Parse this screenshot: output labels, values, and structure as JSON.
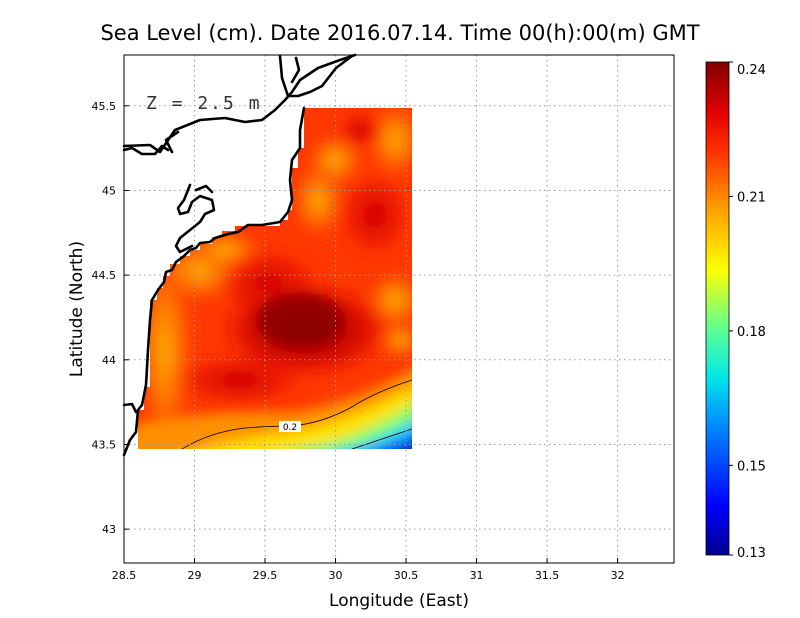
{
  "title": "Sea Level (cm). Date 2016.07.14. Time 00(h):00(m) GMT",
  "annotation": "Z = 2.5 m",
  "chart_data": {
    "type": "heatmap",
    "variable": "Sea Level (cm)",
    "xlabel": "Longitude (East)",
    "ylabel": "Latitude (North)",
    "xlim": [
      28.5,
      32.4
    ],
    "ylim": [
      42.8,
      45.8
    ],
    "x_ticks": [
      "28.5",
      "29",
      "29.5",
      "30",
      "30.5",
      "31",
      "31.5",
      "32"
    ],
    "y_ticks": [
      "43",
      "43.5",
      "44",
      "44.5",
      "45",
      "45.5"
    ],
    "grid": true,
    "colorbar": {
      "min": 0.13,
      "max": 0.24,
      "ticks": [
        "0.24",
        "0.21",
        "0.18",
        "0.15",
        "0.13"
      ],
      "colors": [
        "#00008f",
        "#0000ff",
        "#0090ff",
        "#00e8e8",
        "#60ff90",
        "#ffff00",
        "#ffa000",
        "#ff3000",
        "#e00000",
        "#800000"
      ]
    },
    "contours": [
      {
        "level": 0.2,
        "label": "0.2"
      }
    ],
    "field": {
      "lon_range": [
        28.62,
        30.52
      ],
      "lat_range": [
        43.48,
        45.5
      ],
      "max_center": {
        "lon": 29.85,
        "lat": 44.1,
        "value": 0.24
      },
      "min_corner": {
        "lon": 30.52,
        "lat": 43.48,
        "value": 0.13
      }
    }
  }
}
